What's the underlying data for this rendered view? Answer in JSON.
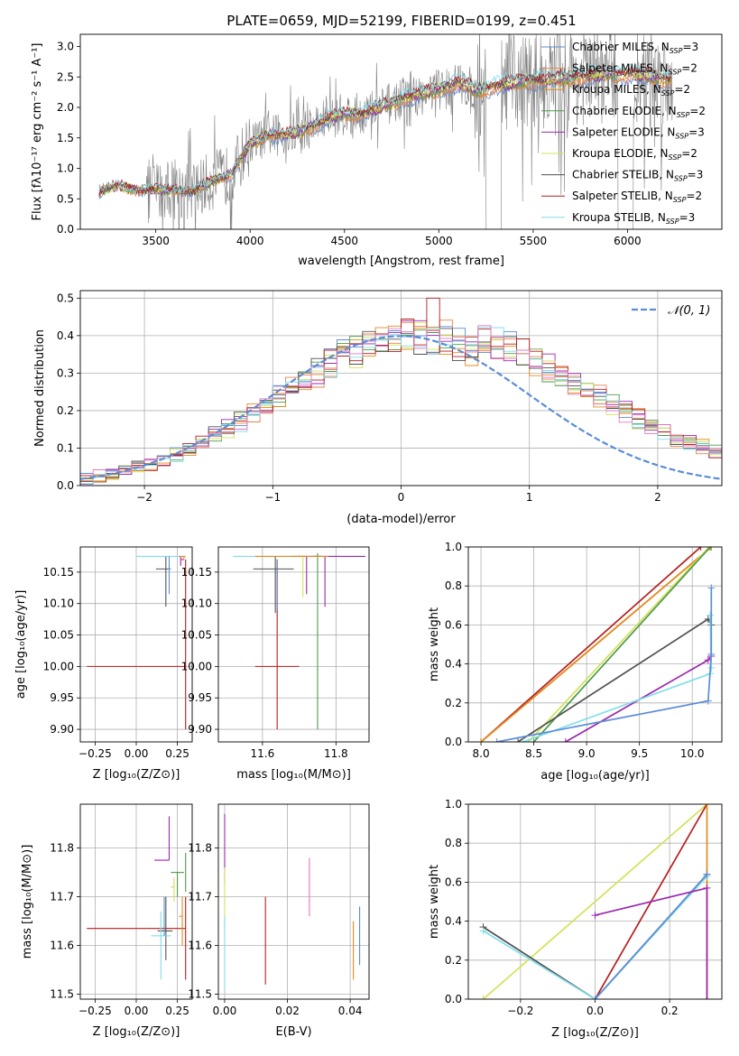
{
  "figure_title": "PLATE=0659, MJD=52199, FIBERID=0199, z=0.451",
  "legend": [
    {
      "label": "Chabrier MILES, N",
      "sub": "SSP",
      "tail": "=3",
      "color": "#5b8dd6"
    },
    {
      "label": "Salpeter MILES, N",
      "sub": "SSP",
      "tail": "=2",
      "color": "#e8824a"
    },
    {
      "label": "Kroupa MILES, N",
      "sub": "SSP",
      "tail": "=2",
      "color": "#e28b1c"
    },
    {
      "label": "Chabrier ELODIE, N",
      "sub": "SSP",
      "tail": "=2",
      "color": "#4d9a4d"
    },
    {
      "label": "Salpeter ELODIE, N",
      "sub": "SSP",
      "tail": "=3",
      "color": "#9b27b0"
    },
    {
      "label": "Kroupa ELODIE, N",
      "sub": "SSP",
      "tail": "=2",
      "color": "#d4e157"
    },
    {
      "label": "Chabrier STELIB, N",
      "sub": "SSP",
      "tail": "=3",
      "color": "#505050"
    },
    {
      "label": "Salpeter STELIB, N",
      "sub": "SSP",
      "tail": "=2",
      "color": "#b71c1c"
    },
    {
      "label": "Kroupa STELIB, N",
      "sub": "SSP",
      "tail": "=3",
      "color": "#80deea"
    }
  ],
  "chart_data": [
    {
      "id": "spectrum",
      "type": "line",
      "xlabel": "wavelength [Angstrom, rest frame]",
      "ylabel": "Flux [fλ10⁻¹⁷ erg cm⁻² s⁻¹ A⁻¹]",
      "xlim": [
        3100,
        6500
      ],
      "ylim": [
        0,
        3.2
      ],
      "xticks": [
        3500,
        4000,
        4500,
        5000,
        5500,
        6000
      ],
      "yticks": [
        0.0,
        0.5,
        1.0,
        1.5,
        2.0,
        2.5,
        3.0
      ],
      "grid": false,
      "legend_position": "top-right",
      "data_color": "#808080",
      "data_range": [
        3200,
        6240
      ],
      "continuum_anchors": [
        [
          3200,
          0.62
        ],
        [
          3300,
          0.72
        ],
        [
          3400,
          0.65
        ],
        [
          3500,
          0.65
        ],
        [
          3600,
          0.66
        ],
        [
          3700,
          0.62
        ],
        [
          3800,
          0.8
        ],
        [
          3900,
          0.9
        ],
        [
          4000,
          1.4
        ],
        [
          4100,
          1.55
        ],
        [
          4200,
          1.55
        ],
        [
          4300,
          1.65
        ],
        [
          4400,
          1.8
        ],
        [
          4500,
          1.9
        ],
        [
          4600,
          1.9
        ],
        [
          4700,
          2.0
        ],
        [
          4800,
          2.15
        ],
        [
          4900,
          2.2
        ],
        [
          5000,
          2.3
        ],
        [
          5100,
          2.4
        ],
        [
          5200,
          2.28
        ],
        [
          5300,
          2.35
        ],
        [
          5400,
          2.4
        ],
        [
          5500,
          2.45
        ],
        [
          5600,
          2.45
        ],
        [
          5700,
          2.5
        ],
        [
          5800,
          2.5
        ],
        [
          5900,
          2.55
        ],
        [
          6000,
          2.55
        ],
        [
          6100,
          2.5
        ],
        [
          6250,
          2.45
        ]
      ]
    },
    {
      "id": "residuals",
      "type": "step",
      "xlabel": "(data-model)/error",
      "ylabel": "Normed distribution",
      "xlim": [
        -2.5,
        2.5
      ],
      "ylim": [
        0,
        0.52
      ],
      "xticks": [
        -2,
        -1,
        0,
        1,
        2
      ],
      "yticks": [
        0.0,
        0.1,
        0.2,
        0.3,
        0.4,
        0.5
      ],
      "grid": true,
      "legend_position": "top-right",
      "gaussian_label": "𝒩(0, 1)",
      "gaussian_color": "#5b8dd6",
      "bin_width": 0.1,
      "hist_colors": [
        "#5b8dd6",
        "#e8824a",
        "#e28b1c",
        "#4d9a4d",
        "#9b27b0",
        "#d4e157",
        "#505050",
        "#b71c1c",
        "#80deea",
        "#e377c2"
      ]
    },
    {
      "id": "age_vs_Z",
      "type": "errorbar",
      "xlabel": "Z [log₁₀(Z/Z⊙)]",
      "ylabel": "age  [log₁₀(age/yr)]",
      "xlim": [
        -0.34,
        0.34
      ],
      "ylim": [
        9.88,
        10.19
      ],
      "xticks": [
        -0.25,
        0.0,
        0.25
      ],
      "yticks": [
        9.9,
        9.95,
        10.0,
        10.05,
        10.1,
        10.15
      ],
      "grid": true,
      "points": [
        {
          "x": 0.0,
          "y": 10.0,
          "xerr": [
            0.3,
            0.3
          ],
          "yerr": [
            0.0,
            0.0
          ],
          "color": "#b71c1c"
        },
        {
          "x": 0.3,
          "y": 10.0,
          "xerr": [
            0.0,
            0.0
          ],
          "yerr": [
            0.1,
            0.17
          ],
          "color": "#b71c1c"
        },
        {
          "x": 0.18,
          "y": 10.155,
          "xerr": [
            0.06,
            0.03
          ],
          "yerr": [
            0.06,
            0.02
          ],
          "color": "#505050"
        },
        {
          "x": 0.14,
          "y": 10.175,
          "xerr": [
            0.14,
            0.14
          ],
          "yerr": [
            0.0,
            0.0
          ],
          "color": "#80deea"
        },
        {
          "x": 0.27,
          "y": 10.17,
          "xerr": [
            0.0,
            0.02
          ],
          "yerr": [
            0.01,
            0.005
          ],
          "color": "#9b27b0"
        },
        {
          "x": 0.29,
          "y": 10.175,
          "xerr": [
            0.03,
            0.01
          ],
          "yerr": [
            0.005,
            0.0
          ],
          "color": "#e28b1c"
        },
        {
          "x": 0.2,
          "y": 10.155,
          "xerr": [
            0.01,
            0.01
          ],
          "yerr": [
            0.04,
            0.02
          ],
          "color": "#5b8dd6"
        }
      ]
    },
    {
      "id": "age_vs_mass",
      "type": "errorbar",
      "xlabel": "mass [log₁₀(M/M⊙)]",
      "ylabel": "",
      "xlim": [
        11.48,
        11.89
      ],
      "ylim": [
        9.88,
        10.19
      ],
      "xticks": [
        11.6,
        11.8
      ],
      "yticks": [
        9.9,
        9.95,
        10.0,
        10.05,
        10.1,
        10.15
      ],
      "grid": true,
      "points": [
        {
          "x": 11.64,
          "y": 10.0,
          "xerr": [
            0.06,
            0.06
          ],
          "yerr": [
            0.1,
            0.17
          ],
          "color": "#b71c1c"
        },
        {
          "x": 11.635,
          "y": 10.155,
          "xerr": [
            0.06,
            0.05
          ],
          "yerr": [
            0.07,
            0.02
          ],
          "color": "#505050"
        },
        {
          "x": 11.62,
          "y": 10.175,
          "xerr": [
            0.1,
            0.1
          ],
          "yerr": [
            0.0,
            0.0
          ],
          "color": "#80deea"
        },
        {
          "x": 11.72,
          "y": 10.175,
          "xerr": [
            0.04,
            0.04
          ],
          "yerr": [
            0.06,
            0.0
          ],
          "color": "#9b27b0"
        },
        {
          "x": 11.77,
          "y": 10.175,
          "xerr": [
            0.03,
            0.11
          ],
          "yerr": [
            0.08,
            0.0
          ],
          "color": "#9b27b0"
        },
        {
          "x": 11.75,
          "y": 10.16,
          "xerr": [
            0.0,
            0.0
          ],
          "yerr": [
            0.26,
            0.02
          ],
          "color": "#4d9a4d"
        },
        {
          "x": 11.71,
          "y": 10.15,
          "xerr": [
            0.0,
            0.0
          ],
          "yerr": [
            0.04,
            0.025
          ],
          "color": "#d4e157"
        },
        {
          "x": 11.64,
          "y": 10.14,
          "xerr": [
            0.0,
            0.0
          ],
          "yerr": [
            0.05,
            0.03
          ],
          "color": "#5b8dd6"
        },
        {
          "x": 11.66,
          "y": 10.175,
          "xerr": [
            0.08,
            0.12
          ],
          "yerr": [
            0.0,
            0.0
          ],
          "color": "#e28b1c"
        }
      ]
    },
    {
      "id": "massweight_vs_age",
      "type": "line",
      "xlabel": "age  [log₁₀(age/yr)]",
      "ylabel": "mass weight",
      "xlim": [
        7.88,
        10.28
      ],
      "ylim": [
        0,
        1.0
      ],
      "xticks": [
        8.0,
        8.5,
        9.0,
        9.5,
        10.0
      ],
      "yticks": [
        0.0,
        0.2,
        0.4,
        0.6,
        0.8,
        1.0
      ],
      "grid": true,
      "series": [
        {
          "color": "#b71c1c",
          "x": [
            8.0,
            10.08
          ],
          "y": [
            0.0,
            1.0
          ]
        },
        {
          "color": "#e8824a",
          "x": [
            8.0,
            10.18
          ],
          "y": [
            0.0,
            1.0
          ]
        },
        {
          "color": "#e28b1c",
          "x": [
            8.0,
            10.18
          ],
          "y": [
            0.0,
            1.0
          ]
        },
        {
          "color": "#d4e157",
          "x": [
            8.45,
            10.16
          ],
          "y": [
            0.0,
            1.0
          ]
        },
        {
          "color": "#4d9a4d",
          "x": [
            8.5,
            10.17
          ],
          "y": [
            0.0,
            1.0
          ]
        },
        {
          "color": "#505050",
          "x": [
            8.35,
            10.15,
            10.18
          ],
          "y": [
            0.0,
            0.63,
            0.6
          ]
        },
        {
          "color": "#9b27b0",
          "x": [
            8.8,
            10.15,
            10.18
          ],
          "y": [
            0.0,
            0.42,
            0.44
          ]
        },
        {
          "color": "#80deea",
          "x": [
            8.4,
            10.17,
            10.18,
            10.17
          ],
          "y": [
            0.0,
            0.35,
            0.38,
            0.65
          ]
        },
        {
          "color": "#5b8dd6",
          "x": [
            8.15,
            10.15,
            10.18,
            10.18
          ],
          "y": [
            0.0,
            0.21,
            0.45,
            0.79
          ]
        }
      ]
    },
    {
      "id": "mass_vs_Z",
      "type": "errorbar",
      "xlabel": "Z [log₁₀(Z/Z⊙)]",
      "ylabel": "mass [log₁₀(M/M⊙)]",
      "xlim": [
        -0.34,
        0.34
      ],
      "ylim": [
        11.49,
        11.89
      ],
      "xticks": [
        -0.25,
        0.0,
        0.25
      ],
      "yticks": [
        11.5,
        11.6,
        11.7,
        11.8
      ],
      "grid": true,
      "points": [
        {
          "x": 0.0,
          "y": 11.635,
          "xerr": [
            0.3,
            0.3
          ],
          "yerr": [
            0.0,
            0.0
          ],
          "color": "#b71c1c"
        },
        {
          "x": 0.3,
          "y": 11.64,
          "xerr": [
            0.0,
            0.0
          ],
          "yerr": [
            0.11,
            0.06
          ],
          "color": "#b71c1c"
        },
        {
          "x": 0.18,
          "y": 11.63,
          "xerr": [
            0.05,
            0.04
          ],
          "yerr": [
            0.06,
            0.07
          ],
          "color": "#505050"
        },
        {
          "x": 0.15,
          "y": 11.62,
          "xerr": [
            0.06,
            0.06
          ],
          "yerr": [
            0.09,
            0.05
          ],
          "color": "#80deea"
        },
        {
          "x": 0.2,
          "y": 11.775,
          "xerr": [
            0.09,
            0.0
          ],
          "yerr": [
            0.0,
            0.09
          ],
          "color": "#9b27b0"
        },
        {
          "x": 0.25,
          "y": 11.75,
          "xerr": [
            0.04,
            0.04
          ],
          "yerr": [
            0.05,
            0.0
          ],
          "color": "#4d9a4d"
        },
        {
          "x": 0.3,
          "y": 11.76,
          "xerr": [
            0.0,
            0.0
          ],
          "yerr": [
            0.05,
            0.03
          ],
          "color": "#4d9a4d"
        },
        {
          "x": 0.23,
          "y": 11.72,
          "xerr": [
            0.02,
            0.0
          ],
          "yerr": [
            0.03,
            0.02
          ],
          "color": "#d4e157"
        },
        {
          "x": 0.17,
          "y": 11.66,
          "xerr": [
            0.0,
            0.0
          ],
          "yerr": [
            0.04,
            0.04
          ],
          "color": "#5b8dd6"
        },
        {
          "x": 0.28,
          "y": 11.66,
          "xerr": [
            0.02,
            0.0
          ],
          "yerr": [
            0.06,
            0.04
          ],
          "color": "#e28b1c"
        }
      ]
    },
    {
      "id": "mass_vs_EBV",
      "type": "errorbar",
      "xlabel": "E(B-V)",
      "ylabel": "",
      "xlim": [
        -0.002,
        0.046
      ],
      "ylim": [
        11.49,
        11.89
      ],
      "xticks": [
        0.0,
        0.02,
        0.04
      ],
      "yticks": [
        11.5,
        11.6,
        11.7,
        11.8
      ],
      "grid": true,
      "points": [
        {
          "x": 0.0,
          "y": 11.8,
          "xerr": [
            0.0,
            0.0
          ],
          "yerr": [
            0.07,
            0.07
          ],
          "color": "#9b27b0"
        },
        {
          "x": 0.0,
          "y": 11.7,
          "xerr": [
            0.0,
            0.0
          ],
          "yerr": [
            0.07,
            0.06
          ],
          "color": "#d4e157"
        },
        {
          "x": 0.0,
          "y": 11.58,
          "xerr": [
            0.0,
            0.0
          ],
          "yerr": [
            0.07,
            0.08
          ],
          "color": "#80deea"
        },
        {
          "x": 0.013,
          "y": 11.61,
          "xerr": [
            0.0,
            0.0
          ],
          "yerr": [
            0.09,
            0.09
          ],
          "color": "#b71c1c"
        },
        {
          "x": 0.027,
          "y": 11.72,
          "xerr": [
            0.0,
            0.0
          ],
          "yerr": [
            0.06,
            0.06
          ],
          "color": "#e377c2"
        },
        {
          "x": 0.041,
          "y": 11.59,
          "xerr": [
            0.0,
            0.0
          ],
          "yerr": [
            0.06,
            0.06
          ],
          "color": "#e28b1c"
        },
        {
          "x": 0.043,
          "y": 11.62,
          "xerr": [
            0.0,
            0.0
          ],
          "yerr": [
            0.06,
            0.06
          ],
          "color": "#5b8dd6"
        }
      ]
    },
    {
      "id": "massweight_vs_Z",
      "type": "line",
      "xlabel": "Z [log₁₀(Z/Z⊙)]",
      "ylabel": "mass weight",
      "xlim": [
        -0.34,
        0.34
      ],
      "ylim": [
        0,
        1.0
      ],
      "xticks": [
        -0.2,
        0.0,
        0.2
      ],
      "yticks": [
        0.0,
        0.2,
        0.4,
        0.6,
        0.8,
        1.0
      ],
      "grid": true,
      "series": [
        {
          "color": "#d4e157",
          "x": [
            -0.3,
            0.3
          ],
          "y": [
            0.0,
            1.0
          ]
        },
        {
          "color": "#b71c1c",
          "x": [
            0.0,
            0.3
          ],
          "y": [
            0.0,
            1.0
          ]
        },
        {
          "color": "#e28b1c",
          "x": [
            0.3,
            0.3
          ],
          "y": [
            0.0,
            1.0
          ]
        },
        {
          "color": "#505050",
          "x": [
            -0.3,
            0.0,
            0.3
          ],
          "y": [
            0.37,
            0.0,
            0.64
          ]
        },
        {
          "color": "#80deea",
          "x": [
            -0.3,
            0.0,
            0.3
          ],
          "y": [
            0.35,
            0.0,
            0.63
          ]
        },
        {
          "color": "#5b8dd6",
          "x": [
            0.0,
            0.3
          ],
          "y": [
            0.0,
            0.64
          ]
        },
        {
          "color": "#9b27b0",
          "x": [
            0.0,
            0.3,
            0.3
          ],
          "y": [
            0.43,
            0.57,
            0.0
          ]
        }
      ]
    }
  ]
}
